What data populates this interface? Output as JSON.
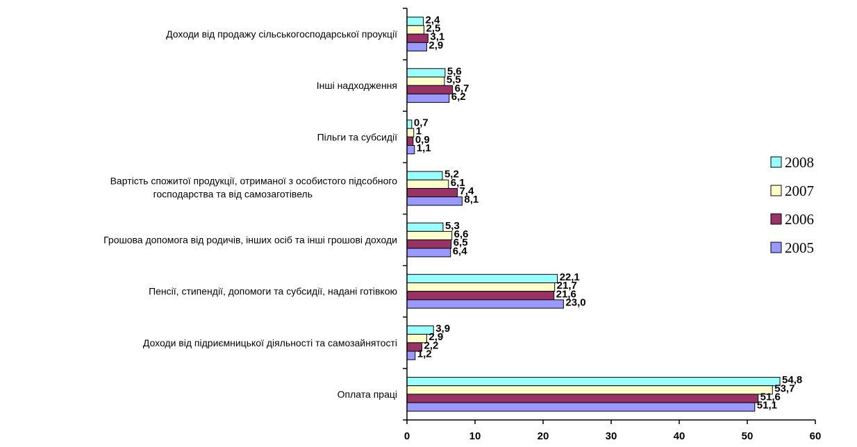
{
  "chart_data": {
    "type": "bar",
    "orientation": "horizontal",
    "title": "",
    "xlabel": "",
    "ylabel": "",
    "xlim": [
      0,
      60
    ],
    "x_ticks": [
      "0",
      "10",
      "20",
      "30",
      "40",
      "50",
      "60"
    ],
    "grid": false,
    "legend_position": "right",
    "categories": [
      "Оплата праці",
      "Доходи від підриємницької діяльності та самозайнятості",
      "Пенсії, стипендії, допомоги та субсидії, надані готівкою",
      "Грошова допомога від родичів, інших осіб та інші грошові доходи",
      "Вартість спожитої продукції, отриманої з особистого підсобного господарства та від самозаготівель",
      "Пільги та субсидії",
      "Інші надходження",
      "Доходи від продажу сільськогосподарської проукції"
    ],
    "series": [
      {
        "name": "2008",
        "color": "#99ffff",
        "values": [
          54.8,
          3.9,
          22.1,
          5.3,
          5.2,
          0.7,
          5.6,
          2.4
        ],
        "labels": [
          "54,8",
          "3,9",
          "22,1",
          "5,3",
          "5,2",
          "0,7",
          "5,6",
          "2,4"
        ]
      },
      {
        "name": "2007",
        "color": "#ffffcc",
        "values": [
          53.7,
          2.9,
          21.7,
          6.6,
          6.1,
          1,
          5.5,
          2.5
        ],
        "labels": [
          "53,7",
          "2,9",
          "21,7",
          "6,6",
          "6,1",
          "1",
          "5,5",
          "2,5"
        ]
      },
      {
        "name": "2006",
        "color": "#993366",
        "values": [
          51.6,
          2.2,
          21.6,
          6.5,
          7.4,
          0.9,
          6.7,
          3.1
        ],
        "labels": [
          "51,6",
          "2,2",
          "21,6",
          "6,5",
          "7,4",
          "0,9",
          "6,7",
          "3,1"
        ]
      },
      {
        "name": "2005",
        "color": "#9999ff",
        "values": [
          51.1,
          1.2,
          23.0,
          6.4,
          8.1,
          1.1,
          6.2,
          2.9
        ],
        "labels": [
          "51,1",
          "1,2",
          "23,0",
          "6,4",
          "8,1",
          "1,1",
          "6,2",
          "2,9"
        ]
      }
    ]
  }
}
